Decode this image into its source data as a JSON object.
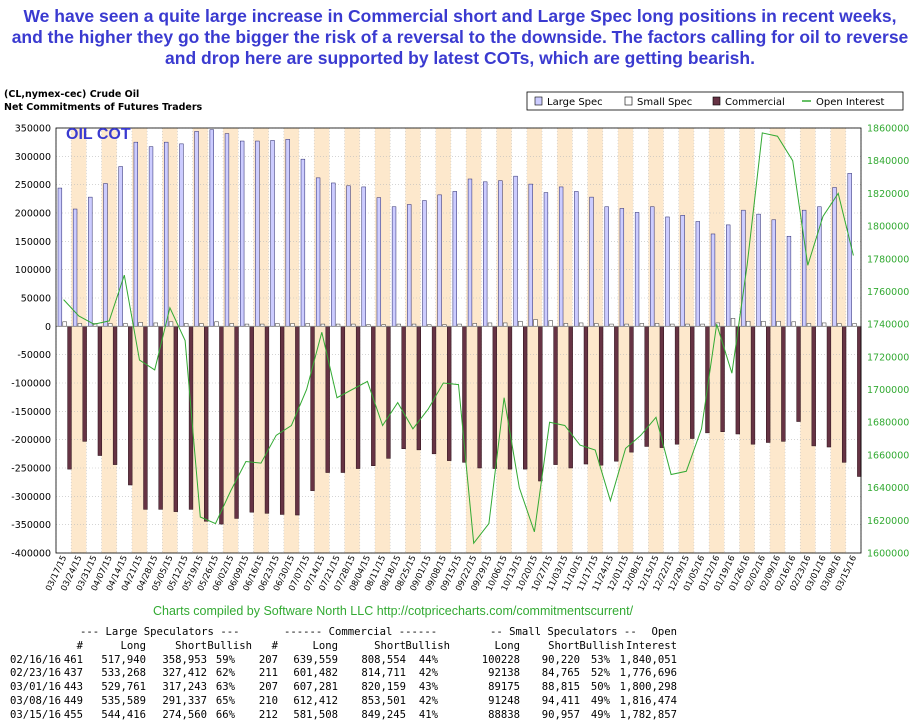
{
  "headline": "We have seen a quite large increase in Commercial short and Large Spec long positions in recent weeks, and the higher they go the bigger the risk of a reversal to the downside. The factors calling for oil to reverse and drop here are supported by latest COTs, which are getting bearish.",
  "chart_header": {
    "line1": "(CL,nymex-cec) Crude Oil",
    "line2": "Net Commitments of Futures Traders",
    "watermark": "OIL COT",
    "credit": "Charts compiled by Software North LLC  http://cotpricecharts.com/commitmentscurrent/"
  },
  "colors": {
    "large_spec": "#ccccff",
    "small_spec": "#ffffff",
    "commercial": "#663344",
    "open_interest": "#33aa33",
    "band": "#fde8cc",
    "headline": "#3a3ad0",
    "credit": "#33aa33"
  },
  "chart_data": {
    "type": "bar",
    "title": "Net Commitments of Futures Traders",
    "categories": [
      "03/17/15",
      "03/24/15",
      "03/31/15",
      "04/07/15",
      "04/14/15",
      "04/21/15",
      "04/28/15",
      "05/05/15",
      "05/12/15",
      "05/19/15",
      "05/26/15",
      "06/02/15",
      "06/09/15",
      "06/16/15",
      "06/23/15",
      "06/30/15",
      "07/07/15",
      "07/14/15",
      "07/21/15",
      "07/28/15",
      "08/04/15",
      "08/11/15",
      "08/18/15",
      "08/25/15",
      "09/01/15",
      "09/08/15",
      "09/15/15",
      "09/22/15",
      "09/29/15",
      "10/06/15",
      "10/13/15",
      "10/20/15",
      "10/27/15",
      "11/03/15",
      "11/10/15",
      "11/17/15",
      "11/24/15",
      "12/01/15",
      "12/08/15",
      "12/15/15",
      "12/22/15",
      "12/29/15",
      "01/05/16",
      "01/12/16",
      "01/19/16",
      "01/26/16",
      "02/02/16",
      "02/09/16",
      "02/16/16",
      "02/23/16",
      "03/01/16",
      "03/08/16",
      "03/15/16"
    ],
    "xtick_labels": [
      "03/17/15",
      "03/24/15",
      "03/31/15",
      "04/07/15",
      "04/14/15",
      "04/21/15",
      "04/28/15",
      "05/05/15",
      "05/12/15",
      "05/19/15",
      "05/26/15",
      "06/02/15",
      "06/09/15",
      "06/16/15",
      "06/23/15",
      "06/30/15",
      "07/07/15",
      "07/14/15",
      "07/21/15",
      "07/28/15",
      "08/04/15",
      "08/11/15",
      "08/18/15",
      "08/25/15",
      "09/01/15",
      "09/08/15",
      "09/15/15",
      "09/22/15",
      "09/29/15",
      "10/06/15",
      "10/13/15",
      "10/20/15",
      "10/27/15",
      "11/03/15",
      "11/10/15",
      "11/17/15",
      "11/24/15",
      "12/01/15",
      "12/08/15",
      "12/15/15",
      "12/22/15",
      "12/29/15",
      "01/05/16",
      "01/12/16",
      "01/19/16",
      "01/26/16",
      "02/02/16",
      "02/09/16",
      "02/16/16",
      "02/23/16",
      "03/01/16",
      "03/08/16",
      "03/15/16"
    ],
    "series": [
      {
        "name": "Large Spec",
        "axis": "left",
        "values": [
          244000,
          207000,
          228000,
          252000,
          282000,
          325000,
          317000,
          325000,
          322000,
          344000,
          347000,
          340000,
          327000,
          327000,
          328000,
          330000,
          295000,
          262000,
          253000,
          248000,
          246000,
          227000,
          211000,
          215000,
          222000,
          232000,
          238000,
          260000,
          255000,
          257000,
          265000,
          251000,
          236000,
          246000,
          238000,
          228000,
          211000,
          208000,
          201000,
          211000,
          193000,
          196000,
          185000,
          163000,
          179000,
          205000,
          198000,
          188000,
          159000,
          205000,
          211000,
          245000,
          270000
        ]
      },
      {
        "name": "Small Spec",
        "axis": "left",
        "values": [
          8000,
          5000,
          5000,
          5000,
          5000,
          7000,
          6000,
          8000,
          5000,
          5000,
          8000,
          5000,
          4000,
          4000,
          5000,
          5000,
          5000,
          4000,
          4000,
          4000,
          3000,
          3000,
          4000,
          4000,
          3000,
          3000,
          4000,
          5000,
          6000,
          6000,
          9000,
          12000,
          10000,
          5000,
          6000,
          5000,
          4000,
          4000,
          5000,
          5000,
          4000,
          4000,
          4000,
          6000,
          14000,
          9000,
          9000,
          9000,
          8000,
          5000,
          6000,
          5000,
          5000
        ]
      },
      {
        "name": "Commercial",
        "axis": "left",
        "values": [
          -252000,
          -203000,
          -228000,
          -244000,
          -280000,
          -323000,
          -323000,
          -327000,
          -323000,
          -344000,
          -349000,
          -339000,
          -328000,
          -330000,
          -332000,
          -333000,
          -290000,
          -258000,
          -258000,
          -251000,
          -246000,
          -233000,
          -216000,
          -218000,
          -225000,
          -237000,
          -240000,
          -250000,
          -251000,
          -252000,
          -252000,
          -273000,
          -244000,
          -250000,
          -243000,
          -245000,
          -238000,
          -222000,
          -212000,
          -214000,
          -208000,
          -198000,
          -188000,
          -186000,
          -190000,
          -208000,
          -205000,
          -203000,
          -168000,
          -211000,
          -213000,
          -240000,
          -265000
        ]
      },
      {
        "name": "Open Interest",
        "axis": "right",
        "values": [
          1755000,
          1745000,
          1740000,
          1742000,
          1770000,
          1718000,
          1712000,
          1750000,
          1730000,
          1622000,
          1618000,
          1638000,
          1656000,
          1655000,
          1672000,
          1678000,
          1700000,
          1735000,
          1695000,
          1700000,
          1705000,
          1678000,
          1692000,
          1676000,
          1688000,
          1704000,
          1703000,
          1606000,
          1618000,
          1695000,
          1640000,
          1613000,
          1680000,
          1678000,
          1666000,
          1663000,
          1632000,
          1664000,
          1672000,
          1683000,
          1648000,
          1650000,
          1676000,
          1740000,
          1710000,
          1776000,
          1857000,
          1855000,
          1840000,
          1776000,
          1806000,
          1820000,
          1782000
        ]
      }
    ],
    "left_axis": {
      "ylim": [
        -400000,
        350000
      ],
      "ticks": [
        350000,
        300000,
        250000,
        200000,
        150000,
        100000,
        50000,
        0,
        -50000,
        -100000,
        -150000,
        -200000,
        -250000,
        -300000,
        -350000,
        -400000
      ]
    },
    "right_axis": {
      "ylim": [
        1600000,
        1860000
      ],
      "ticks": [
        1860000,
        1840000,
        1820000,
        1800000,
        1780000,
        1760000,
        1740000,
        1720000,
        1700000,
        1680000,
        1660000,
        1640000,
        1620000,
        1600000
      ]
    },
    "legend": {
      "position": "top-right",
      "items": [
        "Large Spec",
        "Small Spec",
        "Commercial",
        "Open Interest"
      ]
    },
    "grid": true
  },
  "table": {
    "group_headers": [
      "--- Large Speculators ---",
      "------ Commercial ------",
      "-- Small Speculators --",
      "Open"
    ],
    "columns": [
      "#",
      "Long",
      "Short",
      "Bullish",
      "#",
      "Long",
      "Short",
      "Bullish",
      "Long",
      "Short",
      "Bullish",
      "Interest"
    ],
    "rows": [
      [
        "02/16/16",
        "461",
        "517,940",
        "358,953",
        "59%",
        "207",
        "639,559",
        "808,554",
        "44%",
        "100228",
        "90,220",
        "53%",
        "1,840,051"
      ],
      [
        "02/23/16",
        "437",
        "533,268",
        "327,412",
        "62%",
        "211",
        "601,482",
        "814,711",
        "42%",
        "92138",
        "84,765",
        "52%",
        "1,776,696"
      ],
      [
        "03/01/16",
        "443",
        "529,761",
        "317,243",
        "63%",
        "207",
        "607,281",
        "820,159",
        "43%",
        "89175",
        "88,815",
        "50%",
        "1,800,298"
      ],
      [
        "03/08/16",
        "449",
        "535,589",
        "291,337",
        "65%",
        "210",
        "612,412",
        "853,501",
        "42%",
        "91248",
        "94,411",
        "49%",
        "1,816,474"
      ],
      [
        "03/15/16",
        "455",
        "544,416",
        "274,560",
        "66%",
        "212",
        "581,508",
        "849,245",
        "41%",
        "88838",
        "90,957",
        "49%",
        "1,782,857"
      ]
    ]
  }
}
